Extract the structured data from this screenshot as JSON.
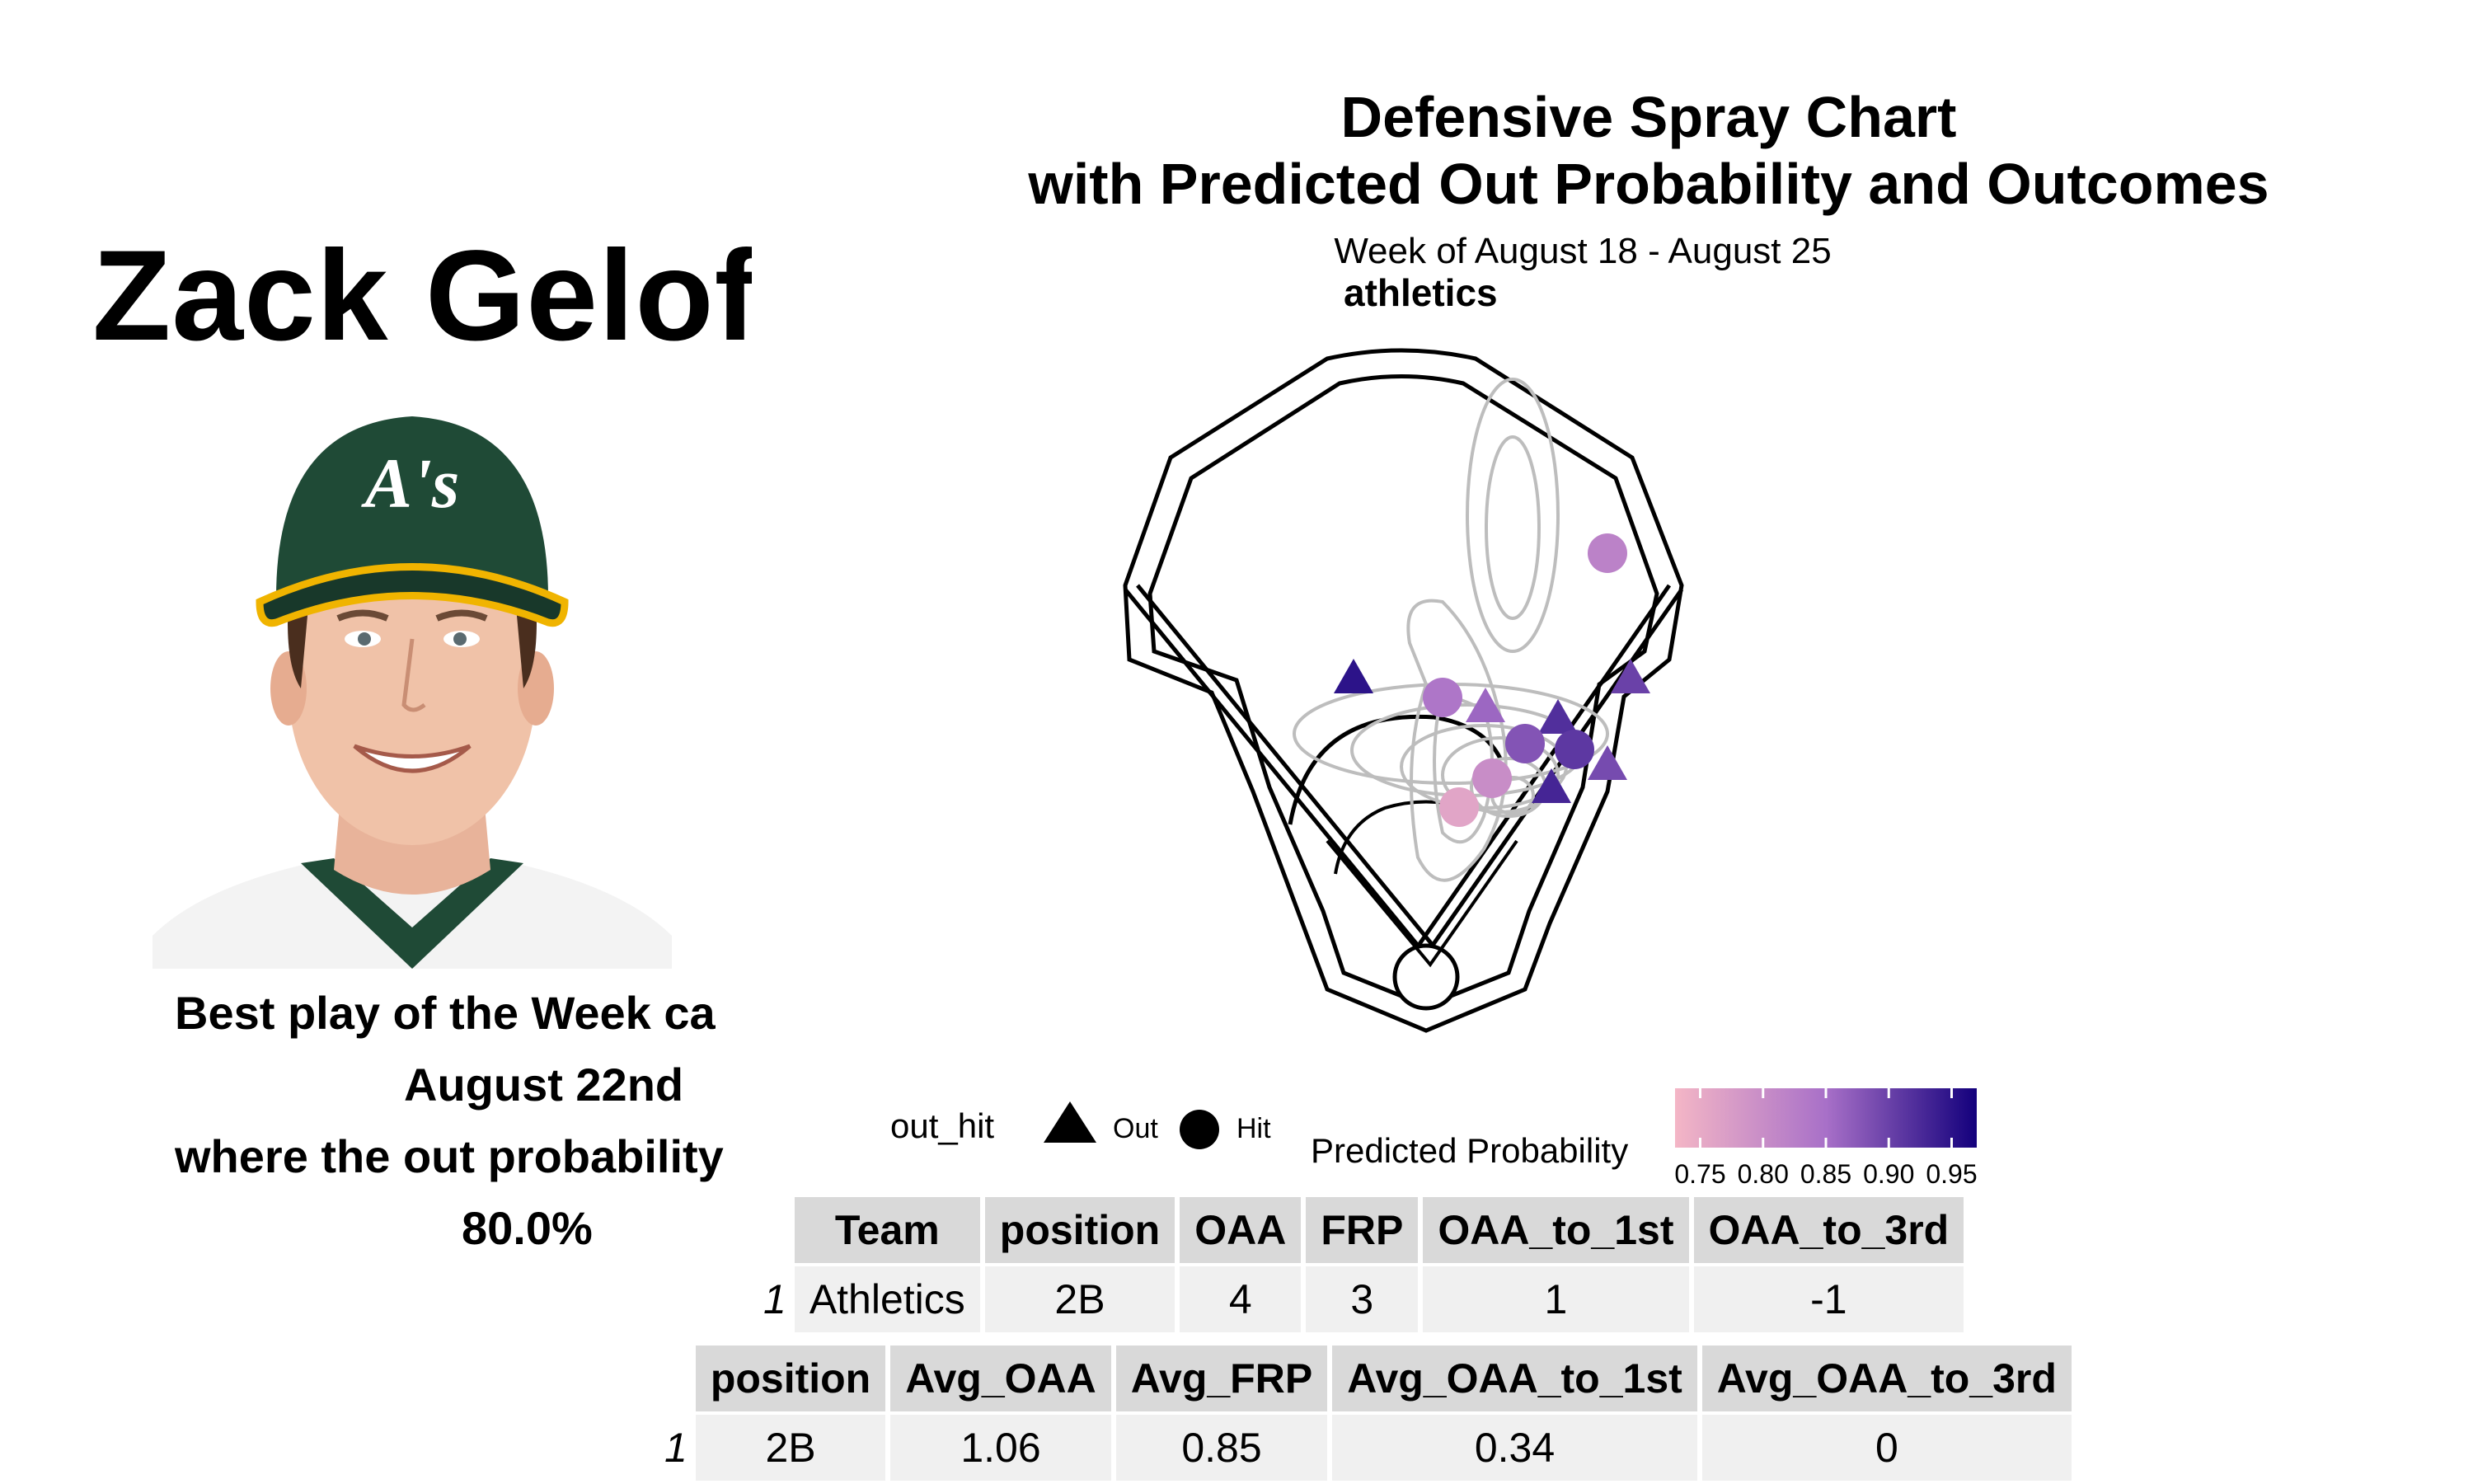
{
  "player": {
    "name": "Zack Gelof",
    "caption_lines": [
      "Best play of the Week ca",
      "August 22nd",
      "where the out probability",
      "80.0%"
    ]
  },
  "chart_data": {
    "type": "scatter",
    "title": "Defensive Spray Chart",
    "title_line2": "with Predicted Out Probability and Outcomes",
    "subtitle": "Week of August 18 - August 25",
    "team_label": "athletics",
    "points": [
      {
        "x": 0.55,
        "y": 0.33,
        "outcome": "Hit",
        "prob": 0.82
      },
      {
        "x": -0.22,
        "y": 0.55,
        "outcome": "Out",
        "prob": 0.95
      },
      {
        "x": 0.62,
        "y": 0.55,
        "outcome": "Out",
        "prob": 0.9
      },
      {
        "x": 0.05,
        "y": 0.58,
        "outcome": "Hit",
        "prob": 0.84
      },
      {
        "x": 0.18,
        "y": 0.6,
        "outcome": "Out",
        "prob": 0.86
      },
      {
        "x": 0.4,
        "y": 0.62,
        "outcome": "Out",
        "prob": 0.92
      },
      {
        "x": 0.3,
        "y": 0.66,
        "outcome": "Hit",
        "prob": 0.88
      },
      {
        "x": 0.45,
        "y": 0.67,
        "outcome": "Hit",
        "prob": 0.91
      },
      {
        "x": 0.55,
        "y": 0.7,
        "outcome": "Out",
        "prob": 0.89
      },
      {
        "x": 0.2,
        "y": 0.72,
        "outcome": "Hit",
        "prob": 0.8
      },
      {
        "x": 0.1,
        "y": 0.77,
        "outcome": "Hit",
        "prob": 0.76
      },
      {
        "x": 0.38,
        "y": 0.74,
        "outcome": "Out",
        "prob": 0.93
      }
    ],
    "legend": {
      "shape_title": "out_hit",
      "shape_entries": [
        "Out",
        "Hit"
      ],
      "color_title": "Predicted Probability",
      "color_ticks": [
        "0.75",
        "0.80",
        "0.85",
        "0.90",
        "0.95"
      ],
      "color_range": [
        0.73,
        0.97
      ],
      "colors": {
        "low": "#f4b6c6",
        "mid": "#a870c8",
        "high": "#13007c"
      }
    }
  },
  "table1": {
    "headers": [
      "Team",
      "position",
      "OAA",
      "FRP",
      "OAA_to_1st",
      "OAA_to_3rd"
    ],
    "rows": [
      [
        "1",
        "Athletics",
        "2B",
        "4",
        "3",
        "1",
        "-1"
      ]
    ]
  },
  "table2": {
    "headers": [
      "position",
      "Avg_OAA",
      "Avg_FRP",
      "Avg_OAA_to_1st",
      "Avg_OAA_to_3rd"
    ],
    "rows": [
      [
        "1",
        "2B",
        "1.06",
        "0.85",
        "0.34",
        "0"
      ]
    ]
  }
}
